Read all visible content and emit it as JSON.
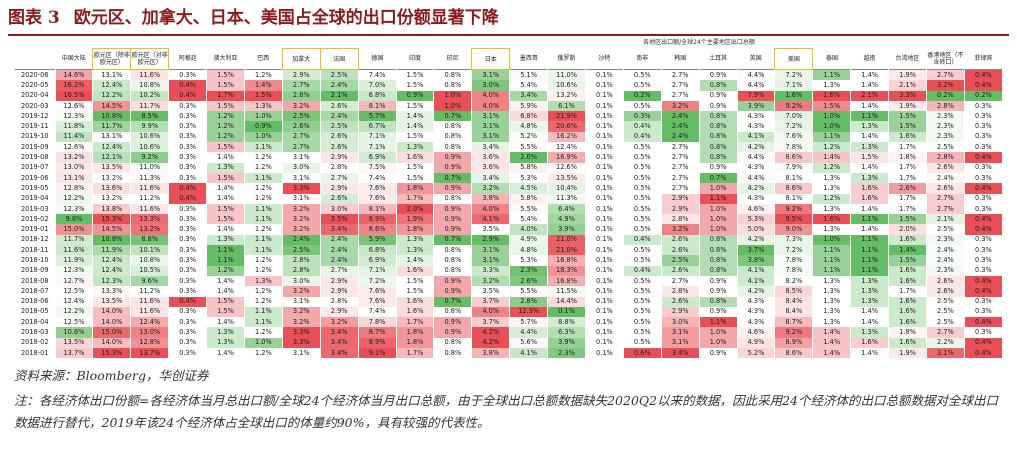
{
  "title": {
    "label": "图表 3",
    "text": "欧元区、加拿大、日本、美国占全球的出口份额显著下降"
  },
  "table_caption": "各地区出口额/全球24个主要地区出口总额",
  "columns": [
    "中国大陆",
    "欧元区（除非欧元区）",
    "欧元区（对非欧元区）",
    "阿根廷",
    "澳大利亚",
    "巴西",
    "加拿大",
    "法国",
    "德国",
    "印度",
    "印尼",
    "日本",
    "墨西哥",
    "俄罗斯",
    "沙特",
    "南非",
    "韩国",
    "土耳其",
    "英国",
    "美国",
    "泰国",
    "越南",
    "台湾地区",
    "香港地区（不含转口）",
    "菲律宾"
  ],
  "highlight_cols": [
    1,
    2,
    6,
    7,
    11,
    19
  ],
  "rows": [
    {
      "d": "2020-06",
      "v": [
        "14.6%",
        "13.1%",
        "11.6%",
        "0.3%",
        "1.5%",
        "1.2%",
        "2.9%",
        "2.5%",
        "7.4%",
        "1.5%",
        "0.8%",
        "3.1%",
        "5.1%",
        "11.0%",
        "0.1%",
        "0.5%",
        "2.7%",
        "0.9%",
        "4.4%",
        "7.2%",
        "1.1%",
        "1.4%",
        "1.9%",
        "2.7%",
        "0.4%"
      ]
    },
    {
      "d": "2020-05",
      "v": [
        "16.2%",
        "12.4%",
        "10.8%",
        "0.4%",
        "1.5%",
        "1.4%",
        "2.7%",
        "2.4%",
        "7.0%",
        "1.5%",
        "0.8%",
        "3.0%",
        "5.4%",
        "10.6%",
        "0.1%",
        "0.5%",
        "2.7%",
        "0.8%",
        "4.4%",
        "7.1%",
        "1.3%",
        "1.4%",
        "2.1%",
        "3.2%",
        "0.4%"
      ]
    },
    {
      "d": "2020-04",
      "v": [
        "16.5%",
        "12.2%",
        "10.2%",
        "0.4%",
        "1.7%",
        "1.5%",
        "2.6%",
        "2.1%",
        "6.8%",
        "0.9%",
        "1.0%",
        "4.0%",
        "3.4%",
        "13.2%",
        "0.1%",
        "0.2%",
        "2.7%",
        "0.9%",
        "7.9%",
        "1.6%",
        "1.6%",
        "2.1%",
        "3.3%",
        "0.2%",
        "0.2%"
      ]
    },
    {
      "d": "2020-03",
      "v": [
        "12.6%",
        "14.5%",
        "11.7%",
        "0.3%",
        "1.5%",
        "1.3%",
        "3.2%",
        "2.6%",
        "8.1%",
        "1.5%",
        "1.0%",
        "4.0%",
        "5.9%",
        "6.1%",
        "0.1%",
        "0.5%",
        "3.2%",
        "0.9%",
        "3.9%",
        "9.2%",
        "1.5%",
        "1.4%",
        "1.9%",
        "2.8%",
        "0.3%"
      ]
    },
    {
      "d": "2019-12",
      "v": [
        "12.3%",
        "10.8%",
        "8.5%",
        "0.3%",
        "1.2%",
        "1.0%",
        "2.5%",
        "2.4%",
        "5.7%",
        "1.4%",
        "0.7%",
        "3.1%",
        "6.8%",
        "21.9%",
        "0.1%",
        "0.3%",
        "2.4%",
        "0.8%",
        "4.3%",
        "7.0%",
        "1.0%",
        "1.1%",
        "1.5%",
        "2.3%",
        "0.3%"
      ]
    },
    {
      "d": "2019-11",
      "v": [
        "11.8%",
        "11.7%",
        "9.9%",
        "0.3%",
        "1.2%",
        "0.9%",
        "2.6%",
        "2.5%",
        "6.7%",
        "1.4%",
        "0.8%",
        "3.1%",
        "4.8%",
        "20.6%",
        "0.1%",
        "0.4%",
        "2.4%",
        "0.8%",
        "4.3%",
        "7.2%",
        "1.0%",
        "1.3%",
        "1.5%",
        "2.3%",
        "0.3%"
      ]
    },
    {
      "d": "2019-10",
      "v": [
        "11.4%",
        "13.1%",
        "10.6%",
        "0.3%",
        "1.2%",
        "1.0%",
        "2.7%",
        "2.6%",
        "7.1%",
        "1.5%",
        "0.8%",
        "3.1%",
        "5.2%",
        "16.2%",
        "0.1%",
        "0.4%",
        "2.4%",
        "0.8%",
        "4.1%",
        "7.6%",
        "1.1%",
        "1.4%",
        "1.6%",
        "2.3%",
        "0.3%"
      ]
    },
    {
      "d": "2019-09",
      "v": [
        "12.6%",
        "12.4%",
        "10.6%",
        "0.3%",
        "1.5%",
        "1.1%",
        "2.7%",
        "2.6%",
        "7.1%",
        "1.3%",
        "0.8%",
        "3.4%",
        "5.5%",
        "12.4%",
        "0.1%",
        "0.5%",
        "2.7%",
        "0.8%",
        "4.2%",
        "7.8%",
        "1.2%",
        "1.3%",
        "1.7%",
        "2.5%",
        "0.3%"
      ]
    },
    {
      "d": "2019-08",
      "v": [
        "13.2%",
        "12.1%",
        "9.2%",
        "0.3%",
        "1.4%",
        "1.2%",
        "3.1%",
        "2.9%",
        "6.9%",
        "1.6%",
        "0.9%",
        "3.6%",
        "2.0%",
        "16.9%",
        "0.1%",
        "0.5%",
        "2.7%",
        "0.8%",
        "4.4%",
        "8.6%",
        "1.4%",
        "1.5%",
        "1.8%",
        "2.8%",
        "0.4%"
      ]
    },
    {
      "d": "2019-07",
      "v": [
        "13.0%",
        "13.5%",
        "11.0%",
        "0.3%",
        "1.3%",
        "1.2%",
        "3.0%",
        "2.8%",
        "7.5%",
        "1.5%",
        "0.9%",
        "3.6%",
        "5.8%",
        "12.6%",
        "0.1%",
        "0.5%",
        "2.7%",
        "0.9%",
        "4.3%",
        "7.9%",
        "1.2%",
        "1.4%",
        "1.7%",
        "2.6%",
        "0.3%"
      ]
    },
    {
      "d": "2019-06",
      "v": [
        "13.1%",
        "13.2%",
        "11.3%",
        "0.3%",
        "1.5%",
        "1.1%",
        "3.1%",
        "2.7%",
        "7.4%",
        "1.5%",
        "0.7%",
        "3.4%",
        "5.3%",
        "13.5%",
        "0.1%",
        "0.5%",
        "2.7%",
        "0.7%",
        "4.4%",
        "8.1%",
        "1.3%",
        "1.3%",
        "1.7%",
        "2.4%",
        "0.3%"
      ]
    },
    {
      "d": "2019-05",
      "v": [
        "12.8%",
        "13.6%",
        "11.6%",
        "0.4%",
        "1.4%",
        "1.2%",
        "3.3%",
        "2.9%",
        "7.6%",
        "1.8%",
        "0.9%",
        "3.2%",
        "4.5%",
        "10.4%",
        "0.1%",
        "0.5%",
        "2.7%",
        "1.0%",
        "4.2%",
        "8.6%",
        "1.3%",
        "1.6%",
        "2.6%",
        "2.6%",
        "0.4%"
      ]
    },
    {
      "d": "2019-04",
      "v": [
        "12.2%",
        "13.2%",
        "11.2%",
        "0.4%",
        "1.4%",
        "1.2%",
        "3.1%",
        "2.6%",
        "7.6%",
        "1.7%",
        "0.8%",
        "3.8%",
        "5.8%",
        "11.3%",
        "0.1%",
        "0.5%",
        "2.9%",
        "1.1%",
        "4.3%",
        "8.1%",
        "1.2%",
        "1.6%",
        "1.7%",
        "2.7%",
        "0.3%"
      ]
    },
    {
      "d": "2019-03",
      "v": [
        "12.3%",
        "13.8%",
        "11.6%",
        "0.3%",
        "1.5%",
        "1.1%",
        "3.2%",
        "3.0%",
        "8.1%",
        "2.0%",
        "0.9%",
        "4.0%",
        "5.5%",
        "6.4%",
        "0.1%",
        "0.5%",
        "2.9%",
        "1.0%",
        "4.6%",
        "9.2%",
        "1.3%",
        "1.4%",
        "1.7%",
        "2.7%",
        "0.3%"
      ]
    },
    {
      "d": "2019-02",
      "v": [
        "9.8%",
        "15.3%",
        "13.3%",
        "0.3%",
        "1.5%",
        "1.1%",
        "3.2%",
        "3.5%",
        "8.9%",
        "1.9%",
        "0.9%",
        "4.1%",
        "5.4%",
        "4.9%",
        "0.1%",
        "0.5%",
        "2.8%",
        "1.0%",
        "5.3%",
        "9.5%",
        "1.6%",
        "1.1%",
        "1.5%",
        "2.1%",
        "0.4%"
      ]
    },
    {
      "d": "2019-01",
      "v": [
        "15.0%",
        "14.5%",
        "13.2%",
        "0.3%",
        "1.4%",
        "1.2%",
        "3.2%",
        "3.4%",
        "8.6%",
        "1.8%",
        "0.9%",
        "3.5%",
        "4.0%",
        "3.9%",
        "0.1%",
        "0.5%",
        "3.2%",
        "1.0%",
        "5.0%",
        "9.0%",
        "1.3%",
        "1.4%",
        "2.0%",
        "2.5%",
        "0.4%"
      ]
    },
    {
      "d": "2018-12",
      "v": [
        "11.7%",
        "10.8%",
        "8.8%",
        "0.3%",
        "1.3%",
        "1.1%",
        "2.4%",
        "2.4%",
        "5.9%",
        "1.3%",
        "0.7%",
        "2.9%",
        "4.9%",
        "21.0%",
        "0.1%",
        "0.4%",
        "2.6%",
        "0.8%",
        "4.2%",
        "7.3%",
        "1.0%",
        "1.1%",
        "1.6%",
        "2.3%",
        "0.3%"
      ]
    },
    {
      "d": "2018-11",
      "v": [
        "11.6%",
        "11.9%",
        "10.1%",
        "0.3%",
        "1.1%",
        "1.1%",
        "2.5%",
        "2.4%",
        "6.8%",
        "1.3%",
        "0.8%",
        "3.1%",
        "4.8%",
        "21.0%",
        "0.1%",
        "0.5%",
        "2.6%",
        "0.8%",
        "3.7%",
        "7.2%",
        "1.1%",
        "1.1%",
        "1.4%",
        "2.4%",
        "0.3%"
      ]
    },
    {
      "d": "2018-10",
      "v": [
        "11.9%",
        "12.4%",
        "10.8%",
        "0.3%",
        "1.1%",
        "1.2%",
        "2.8%",
        "2.4%",
        "6.9%",
        "1.4%",
        "0.8%",
        "3.1%",
        "5.3%",
        "16.8%",
        "0.1%",
        "0.5%",
        "2.5%",
        "0.8%",
        "3.8%",
        "7.8%",
        "1.1%",
        "1.1%",
        "1.5%",
        "2.4%",
        "0.3%"
      ]
    },
    {
      "d": "2018-09",
      "v": [
        "12.3%",
        "12.4%",
        "10.5%",
        "0.3%",
        "1.2%",
        "1.2%",
        "2.8%",
        "2.7%",
        "7.1%",
        "1.6%",
        "0.8%",
        "3.3%",
        "2.3%",
        "18.3%",
        "0.1%",
        "0.4%",
        "2.6%",
        "0.8%",
        "4.1%",
        "7.8%",
        "1.1%",
        "1.1%",
        "1.6%",
        "2.3%",
        "0.3%"
      ]
    },
    {
      "d": "2018-08",
      "v": [
        "12.7%",
        "12.3%",
        "9.6%",
        "0.3%",
        "1.4%",
        "1.3%",
        "3.0%",
        "2.9%",
        "7.2%",
        "1.5%",
        "0.9%",
        "3.2%",
        "2.6%",
        "16.8%",
        "0.1%",
        "0.5%",
        "2.7%",
        "0.9%",
        "4.1%",
        "8.2%",
        "1.3%",
        "1.3%",
        "1.6%",
        "2.6%",
        "0.4%"
      ]
    },
    {
      "d": "2018-07",
      "v": [
        "12.5%",
        "13.3%",
        "11.2%",
        "0.3%",
        "1.4%",
        "1.2%",
        "3.2%",
        "2.9%",
        "7.6%",
        "1.5%",
        "0.9%",
        "3.5%",
        "5.5%",
        "11.5%",
        "0.1%",
        "0.5%",
        "2.8%",
        "0.9%",
        "4.2%",
        "8.5%",
        "1.3%",
        "1.3%",
        "1.7%",
        "2.6%",
        "0.4%"
      ]
    },
    {
      "d": "2018-06",
      "v": [
        "12.4%",
        "13.5%",
        "11.6%",
        "0.4%",
        "1.5%",
        "1.2%",
        "3.1%",
        "2.8%",
        "7.6%",
        "1.6%",
        "0.7%",
        "3.7%",
        "2.8%",
        "14.4%",
        "0.1%",
        "0.5%",
        "2.6%",
        "0.8%",
        "4.3%",
        "8.4%",
        "1.3%",
        "1.3%",
        "1.6%",
        "2.5%",
        "0.3%"
      ]
    },
    {
      "d": "2018-05",
      "v": [
        "12.2%",
        "14.0%",
        "11.6%",
        "0.3%",
        "1.5%",
        "1.1%",
        "3.2%",
        "2.9%",
        "7.4%",
        "1.6%",
        "0.8%",
        "4.0%",
        "12.3%",
        "0.1%",
        "0.1%",
        "0.5%",
        "2.9%",
        "0.9%",
        "4.3%",
        "8.4%",
        "1.3%",
        "1.4%",
        "1.6%",
        "2.5%",
        "0.3%"
      ]
    },
    {
      "d": "2018-04",
      "v": [
        "12.5%",
        "14.0%",
        "12.4%",
        "0.3%",
        "1.4%",
        "1.1%",
        "3.2%",
        "3.2%",
        "7.8%",
        "1.7%",
        "0.9%",
        "3.7%",
        "5.7%",
        "8.8%",
        "0.1%",
        "0.5%",
        "3.0%",
        "1.1%",
        "4.3%",
        "8.7%",
        "1.3%",
        "1.4%",
        "1.6%",
        "2.5%",
        "0.4%"
      ]
    },
    {
      "d": "2018-03",
      "v": [
        "10.6%",
        "15.0%",
        "13.0%",
        "0.3%",
        "1.3%",
        "1.2%",
        "3.3%",
        "3.4%",
        "8.7%",
        "1.8%",
        "0.9%",
        "4.2%",
        "4.4%",
        "6.3%",
        "0.1%",
        "0.5%",
        "3.1%",
        "1.0%",
        "4.6%",
        "9.2%",
        "1.4%",
        "1.3%",
        "1.8%",
        "2.7%",
        "0.3%"
      ]
    },
    {
      "d": "2018-02",
      "v": [
        "13.5%",
        "14.0%",
        "12.8%",
        "0.3%",
        "1.3%",
        "1.0%",
        "3.3%",
        "3.4%",
        "8.9%",
        "1.8%",
        "0.8%",
        "4.2%",
        "5.6%",
        "3.9%",
        "0.1%",
        "0.5%",
        "3.1%",
        "1.0%",
        "4.9%",
        "8.9%",
        "1.4%",
        "1.6%",
        "1.6%",
        "2.2%",
        "0.4%"
      ]
    },
    {
      "d": "2018-01",
      "v": [
        "13.7%",
        "15.3%",
        "13.7%",
        "0.3%",
        "1.4%",
        "1.2%",
        "3.1%",
        "3.4%",
        "9.1%",
        "1.7%",
        "0.8%",
        "3.8%",
        "4.1%",
        "2.3%",
        "0.1%",
        "0.6%",
        "3.4%",
        "0.9%",
        "5.2%",
        "8.6%",
        "1.4%",
        "1.4%",
        "1.9%",
        "3.1%",
        "0.4%"
      ]
    }
  ],
  "source": "资料来源：Bloomberg，华创证券",
  "note": "注：各经济体出口份额=各经济体当月总出口额/全球24个经济体当月出口总额，由于全球出口总额数据缺失2020Q2以来的数据，因此采用24个经济体的出口总额数据对全球出口数据进行替代，2019年该24个经济体占全球出口的体量约90%，具有较强的代表性。",
  "colors": {
    "title": "#8b1a1a",
    "high": "#e8464e",
    "mid": "#ffffff",
    "low": "#5cb85c",
    "highlight_border": "#e8c020"
  }
}
